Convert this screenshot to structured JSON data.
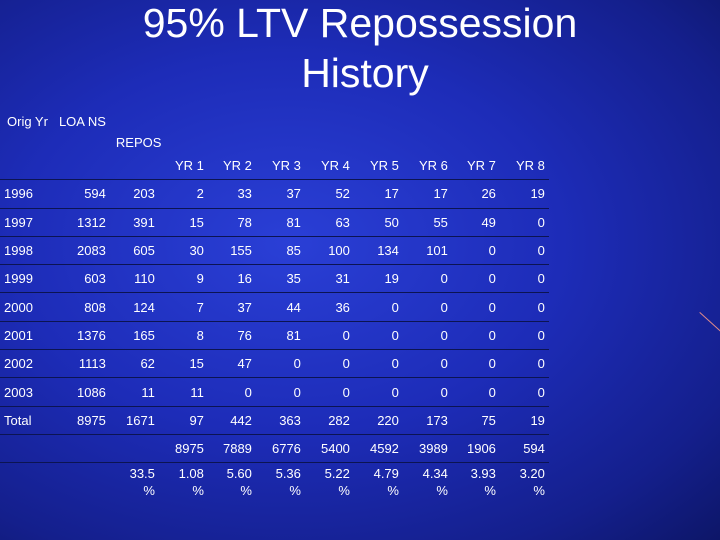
{
  "title": {
    "line1": "95% LTV Repossession",
    "line2": "History"
  },
  "header": {
    "orig_yr": "Orig Yr",
    "loans": "LOA NS",
    "repos": "REPOS"
  },
  "year_cols": [
    "YR 1",
    "YR 2",
    "YR 3",
    "YR 4",
    "YR 5",
    "YR 6",
    "YR 7",
    "YR 8"
  ],
  "rows": [
    {
      "label": "1996",
      "loans": "594",
      "repos": "203",
      "values": [
        "2",
        "33",
        "37",
        "52",
        "17",
        "17",
        "26",
        "19"
      ]
    },
    {
      "label": "1997",
      "loans": "1312",
      "repos": "391",
      "values": [
        "15",
        "78",
        "81",
        "63",
        "50",
        "55",
        "49",
        "0"
      ]
    },
    {
      "label": "1998",
      "loans": "2083",
      "repos": "605",
      "values": [
        "30",
        "155",
        "85",
        "100",
        "134",
        "101",
        "0",
        "0"
      ]
    },
    {
      "label": "1999",
      "loans": "603",
      "repos": "110",
      "values": [
        "9",
        "16",
        "35",
        "31",
        "19",
        "0",
        "0",
        "0"
      ]
    },
    {
      "label": "2000",
      "loans": "808",
      "repos": "124",
      "values": [
        "7",
        "37",
        "44",
        "36",
        "0",
        "0",
        "0",
        "0"
      ]
    },
    {
      "label": "2001",
      "loans": "1376",
      "repos": "165",
      "values": [
        "8",
        "76",
        "81",
        "0",
        "0",
        "0",
        "0",
        "0"
      ]
    },
    {
      "label": "2002",
      "loans": "1113",
      "repos": "62",
      "values": [
        "15",
        "47",
        "0",
        "0",
        "0",
        "0",
        "0",
        "0"
      ]
    },
    {
      "label": "2003",
      "loans": "1086",
      "repos": "11",
      "values": [
        "11",
        "0",
        "0",
        "0",
        "0",
        "0",
        "0",
        "0"
      ]
    },
    {
      "label": "Total",
      "loans": "8975",
      "repos": "1671",
      "values": [
        "97",
        "442",
        "363",
        "282",
        "220",
        "173",
        "75",
        "19"
      ]
    }
  ],
  "exposure": [
    "8975",
    "7889",
    "6776",
    "5400",
    "4592",
    "3989",
    "1906",
    "594"
  ],
  "repos_rate": "33.5 %",
  "year_rates": [
    "1.08 %",
    "5.60 %",
    "5.36 %",
    "5.22 %",
    "4.79 %",
    "4.34 %",
    "3.93 %",
    "3.20 %"
  ]
}
